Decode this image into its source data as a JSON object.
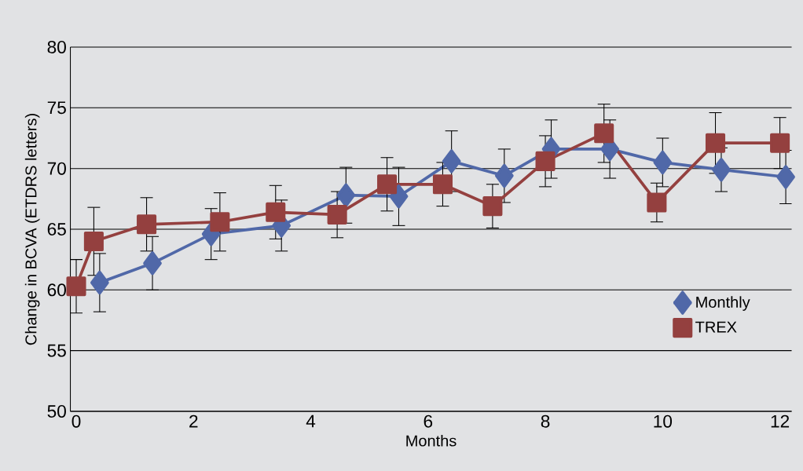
{
  "chart_data": {
    "type": "line",
    "xlabel": "Months",
    "ylabel": "Change in BCVA (ETDRS letters)",
    "xlim": [
      -0.1,
      12.2
    ],
    "ylim": [
      50,
      80
    ],
    "xticks": [
      0,
      2,
      4,
      6,
      8,
      10,
      12
    ],
    "yticks": [
      50,
      55,
      60,
      65,
      70,
      75,
      80
    ],
    "grid": "y",
    "legend": "bottom right",
    "series": [
      {
        "name": "Monthly",
        "color": "#5068a8",
        "marker": "diamond",
        "x": [
          0.4,
          1.3,
          2.3,
          3.5,
          4.6,
          5.5,
          6.4,
          7.3,
          8.1,
          9.1,
          10.0,
          11.0,
          12.1
        ],
        "values": [
          60.6,
          62.2,
          64.6,
          65.3,
          67.8,
          67.7,
          70.6,
          69.4,
          71.6,
          71.6,
          70.5,
          69.9,
          69.3
        ],
        "errors": [
          2.4,
          2.2,
          2.1,
          2.1,
          2.3,
          2.4,
          2.5,
          2.2,
          2.4,
          2.4,
          2.0,
          1.8,
          2.2
        ]
      },
      {
        "name": "TREX",
        "color": "#94403f",
        "marker": "square",
        "x": [
          0,
          0.3,
          1.2,
          2.45,
          3.4,
          4.45,
          5.3,
          6.25,
          7.1,
          8.0,
          9.0,
          9.9,
          10.9,
          12.0
        ],
        "values": [
          60.3,
          64.0,
          65.4,
          65.6,
          66.4,
          66.2,
          68.7,
          68.7,
          66.9,
          70.6,
          72.9,
          67.2,
          72.1,
          72.1
        ],
        "errors": [
          2.2,
          2.8,
          2.2,
          2.4,
          2.2,
          1.9,
          2.2,
          1.8,
          1.8,
          2.1,
          2.4,
          1.6,
          2.5,
          2.1
        ]
      }
    ]
  }
}
